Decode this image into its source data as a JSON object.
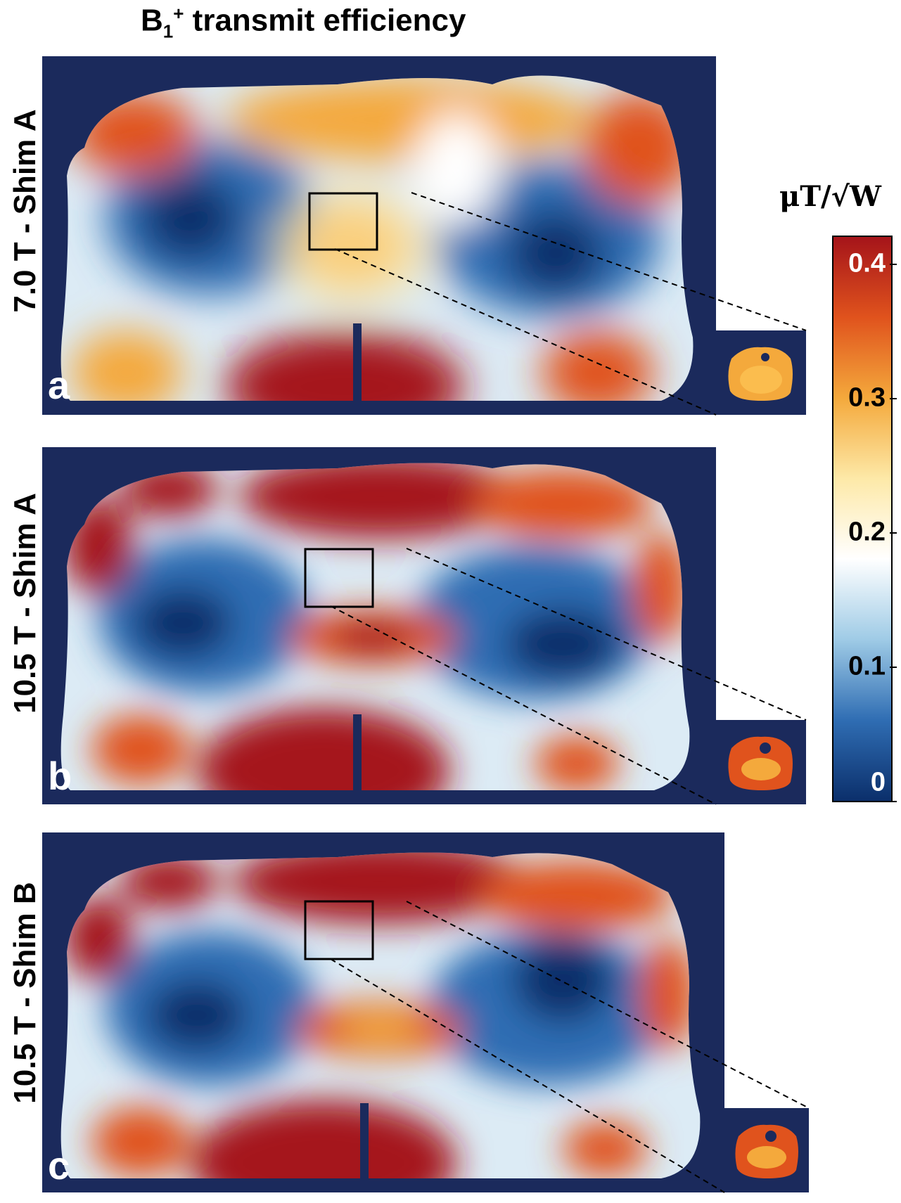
{
  "title": {
    "prefix": "B",
    "sub": "1",
    "sup": "+",
    "rest": " transmit efficiency"
  },
  "panels": [
    {
      "letter": "a",
      "label": "7.0 T  -  Shim A"
    },
    {
      "letter": "b",
      "label": "10.5 T  -  Shim A"
    },
    {
      "letter": "c",
      "label": "10.5 T  -  Shim B"
    }
  ],
  "colorbar": {
    "unit": "μT/√W",
    "min": 0,
    "max": 0.42,
    "ticks": [
      {
        "value": 0.4,
        "label": "0.4"
      },
      {
        "value": 0.3,
        "label": "0.3"
      },
      {
        "value": 0.2,
        "label": "0.2"
      },
      {
        "value": 0.1,
        "label": "0.1"
      },
      {
        "value": 0,
        "label": "0"
      }
    ],
    "colors": [
      "#0b2f6b",
      "#2f6db3",
      "#9fcbe6",
      "#ffffff",
      "#fde9a8",
      "#f4a93c",
      "#e0531d",
      "#a5141a"
    ]
  }
}
